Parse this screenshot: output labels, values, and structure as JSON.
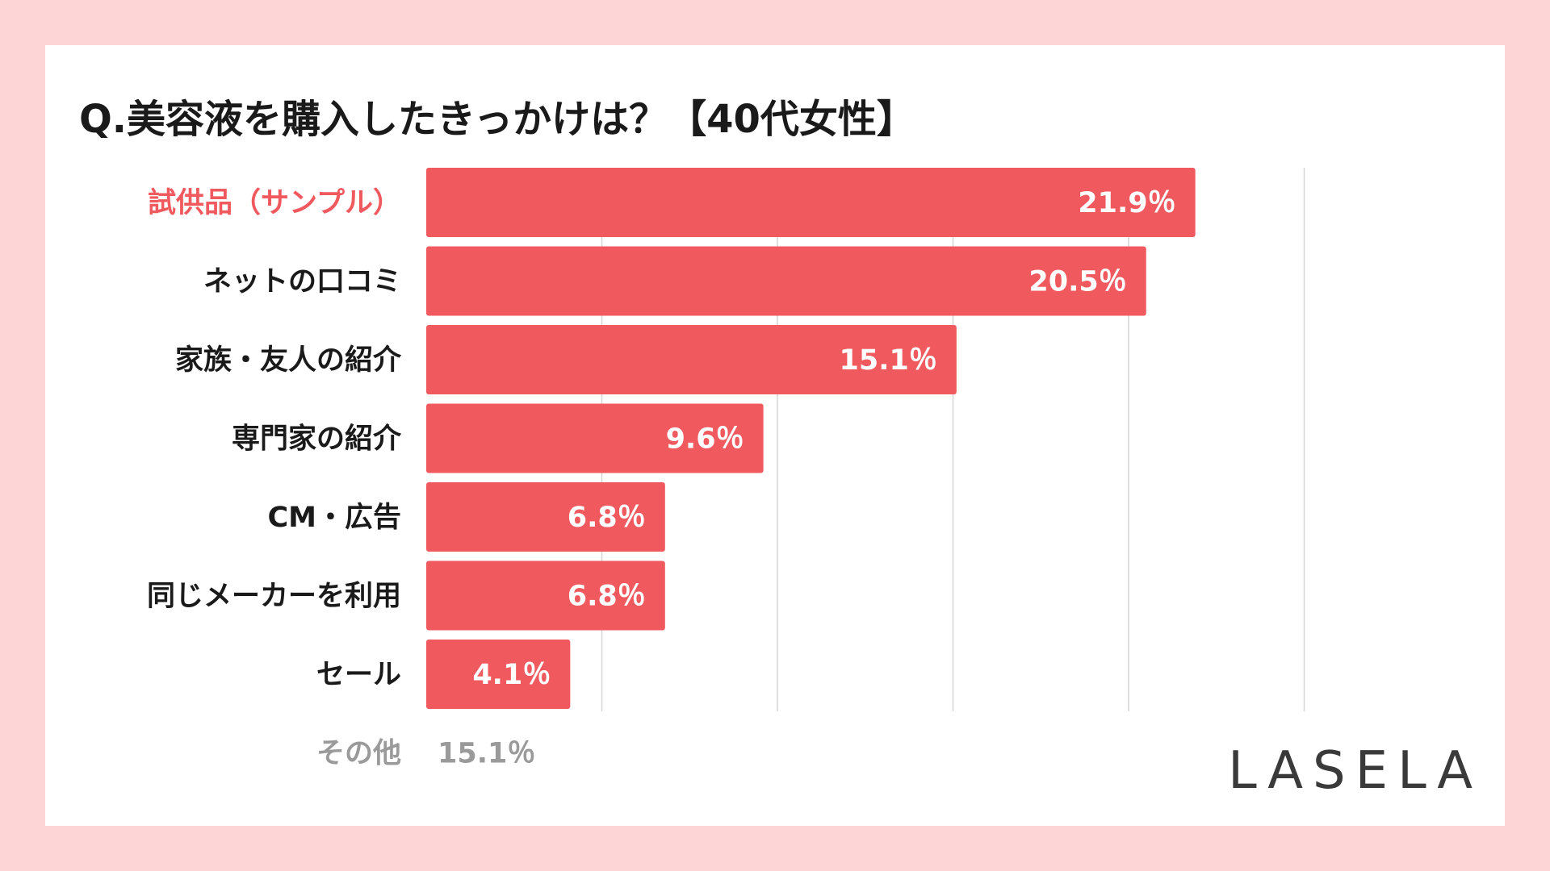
{
  "title": "Q.美容液を購入したきっかけは？【40代女性】",
  "brand": "LASELA",
  "colors": {
    "background": "#fdd5d6",
    "panel": "#ffffff",
    "bar": "#f0595e",
    "highlight_label": "#f0595e",
    "grid": "#d6d6d6",
    "muted": "#9a9a9a"
  },
  "chart_data": {
    "type": "bar",
    "orientation": "horizontal",
    "title": "Q.美容液を購入したきっかけは？【40代女性】",
    "categories": [
      "試供品（サンプル）",
      "ネットの口コミ",
      "家族・友人の紹介",
      "専門家の紹介",
      "CM・広告",
      "同じメーカーを利用",
      "セール"
    ],
    "values": [
      21.9,
      20.5,
      15.1,
      9.6,
      6.8,
      6.8,
      4.1
    ],
    "value_labels": [
      "21.9％",
      "20.5％",
      "15.1％",
      "9.6％",
      "6.8％",
      "6.8％",
      "4.1％"
    ],
    "unit": "%",
    "xlim": [
      0,
      25
    ],
    "grid_step": 5,
    "grid": true,
    "highlight_index": 0,
    "other": {
      "label": "その他",
      "value": 15.1,
      "value_label": "15.1％"
    }
  }
}
